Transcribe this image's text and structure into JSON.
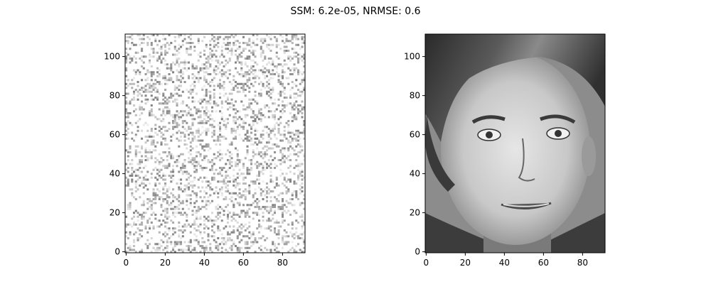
{
  "chart_data": {
    "type": "heatmap",
    "title": "SSM: 6.2e-05, NRMSE: 0.6",
    "colormap": "gray",
    "panels": [
      {
        "name": "",
        "content": "noise pattern",
        "image_shape": [
          112,
          92
        ],
        "x_ticks": [
          0,
          20,
          40,
          60,
          80
        ],
        "y_ticks": [
          0,
          20,
          40,
          60,
          80,
          100
        ],
        "x_tick_labels": [
          "0",
          "20",
          "40",
          "60",
          "80"
        ],
        "y_tick_labels": [
          "0",
          "20",
          "40",
          "60",
          "80",
          "100"
        ],
        "xlim": [
          -0.5,
          91.5
        ],
        "ylim": [
          111.5,
          -0.5
        ]
      },
      {
        "name": "",
        "content": "grayscale face photograph",
        "image_shape": [
          112,
          92
        ],
        "x_ticks": [
          0,
          20,
          40,
          60,
          80
        ],
        "y_ticks": [
          0,
          20,
          40,
          60,
          80,
          100
        ],
        "x_tick_labels": [
          "0",
          "20",
          "40",
          "60",
          "80"
        ],
        "y_tick_labels": [
          "0",
          "20",
          "40",
          "60",
          "80",
          "100"
        ],
        "xlim": [
          -0.5,
          91.5
        ],
        "ylim": [
          111.5,
          -0.5
        ]
      }
    ]
  }
}
